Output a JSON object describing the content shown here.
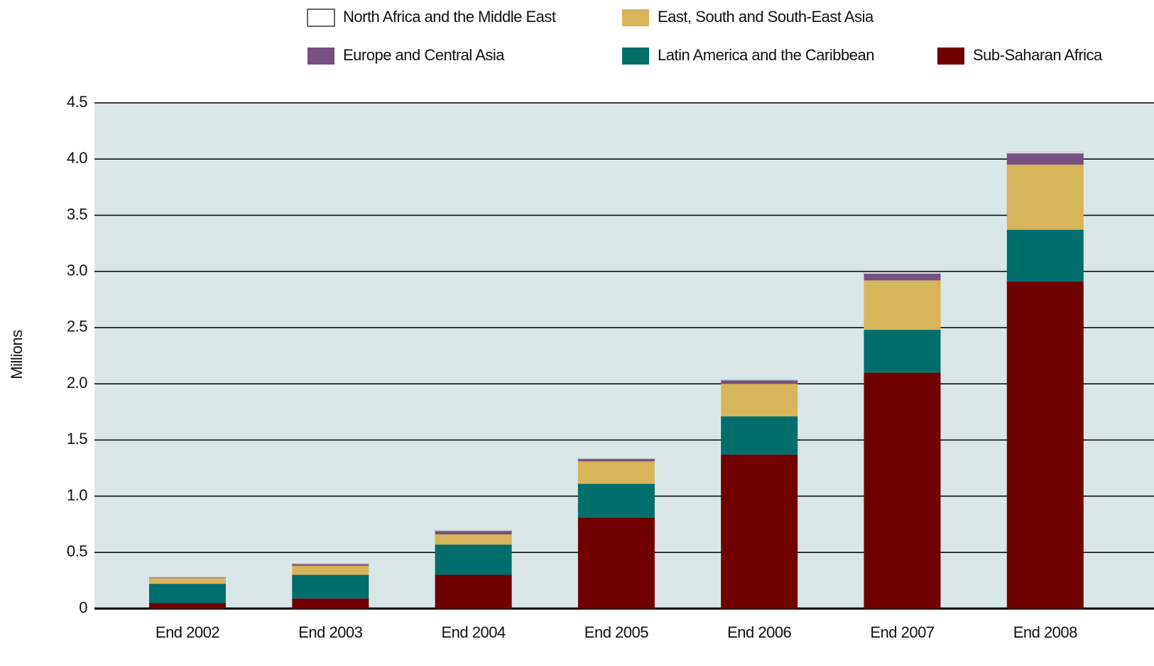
{
  "chart_data": {
    "type": "stacked-bar",
    "y_label": "Millions",
    "categories": [
      "End 2002",
      "End 2003",
      "End 2004",
      "End 2005",
      "End 2006",
      "End 2007",
      "End 2008"
    ],
    "series": [
      {
        "name": "Sub-Saharan Africa",
        "color": "#700000",
        "values": [
          0.05,
          0.09,
          0.3,
          0.81,
          1.37,
          2.1,
          2.91
        ]
      },
      {
        "name": "Latin America and the Caribbean",
        "color": "#006e6a",
        "values": [
          0.17,
          0.21,
          0.27,
          0.3,
          0.34,
          0.38,
          0.46
        ]
      },
      {
        "name": "East, South and South-East Asia",
        "color": "#d8b45a",
        "values": [
          0.05,
          0.08,
          0.09,
          0.2,
          0.29,
          0.44,
          0.58
        ]
      },
      {
        "name": "Europe and Central Asia",
        "color": "#76507e",
        "values": [
          0.005,
          0.015,
          0.03,
          0.02,
          0.03,
          0.06,
          0.1
        ]
      },
      {
        "name": "North Africa and the Middle East",
        "color": "#ffffff",
        "values": [
          0.005,
          0.005,
          0.005,
          0.005,
          0.005,
          0.01,
          0.01
        ]
      }
    ],
    "ylim": [
      0,
      4.5
    ],
    "yticks": [
      0,
      0.5,
      {
        "value": 1,
        "label": "1.0"
      },
      1.5,
      {
        "value": 2,
        "label": "2.0"
      },
      2.5,
      {
        "value": 3,
        "label": "3.0"
      },
      3.5,
      {
        "value": 4,
        "label": "4.0"
      },
      4.5
    ],
    "grid": true
  }
}
